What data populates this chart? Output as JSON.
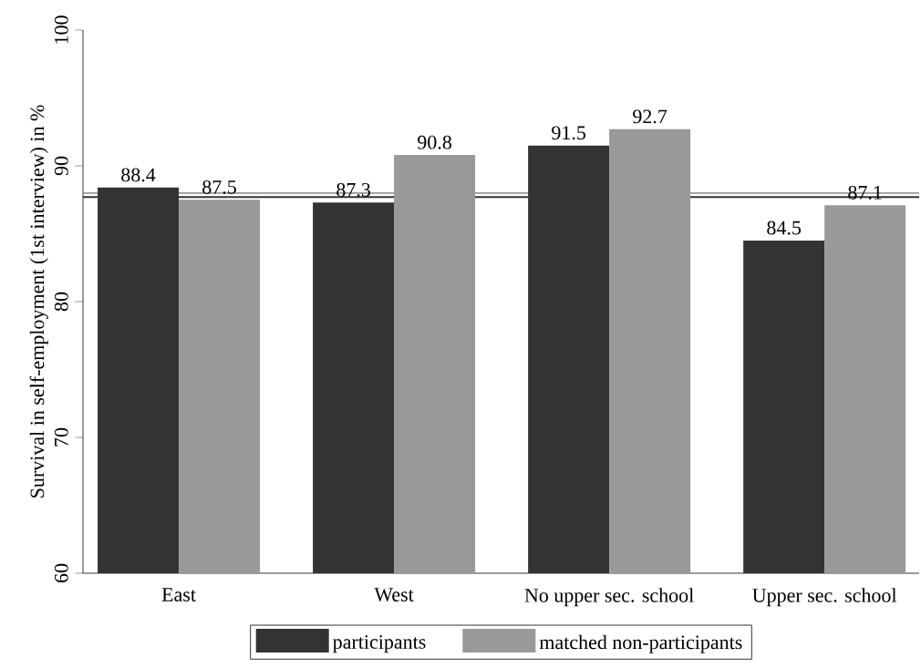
{
  "chart_data": {
    "type": "bar",
    "ylabel": "Survival in self-employment (1st interview) in %",
    "categories": [
      "East",
      "West",
      "No upper sec. school",
      "Upper sec. school"
    ],
    "series": [
      {
        "name": "participants",
        "color": "#333333",
        "values": [
          88.4,
          87.3,
          91.5,
          84.5
        ]
      },
      {
        "name": "matched non-participants",
        "color": "#999999",
        "values": [
          87.5,
          90.8,
          92.7,
          87.1
        ]
      }
    ],
    "ylim": [
      60,
      100
    ],
    "yticks": [
      60,
      70,
      80,
      90,
      100
    ],
    "ref_lines": [
      {
        "axis": "y",
        "value": 88.0,
        "color": "#999999"
      },
      {
        "axis": "y",
        "value": 87.7,
        "color": "#333333"
      }
    ],
    "data_labels": true,
    "legend": "bottom",
    "grid": false
  }
}
